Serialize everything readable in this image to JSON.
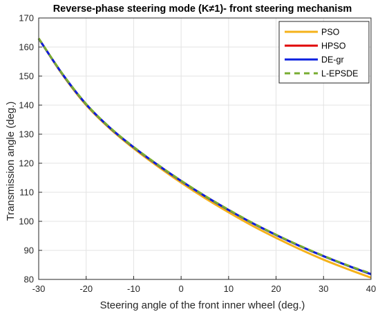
{
  "chart_data": {
    "type": "line",
    "title": "Reverse-phase steering mode (K≠1)- front steering mechanism",
    "xlabel": "Steering angle of the front inner wheel (deg.)",
    "ylabel": "Transmission angle (deg.)",
    "xlim": [
      -30,
      40
    ],
    "ylim": [
      80,
      170
    ],
    "xticks": [
      "-30",
      "-20",
      "-10",
      "0",
      "10",
      "20",
      "30",
      "40"
    ],
    "yticks": [
      "80",
      "90",
      "100",
      "110",
      "120",
      "130",
      "140",
      "150",
      "160",
      "170"
    ],
    "grid": true,
    "legend_position": "top-right",
    "x": [
      -30,
      -25,
      -20,
      -15,
      -10,
      -5,
      0,
      5,
      10,
      15,
      20,
      25,
      30,
      35,
      40
    ],
    "series": [
      {
        "name": "PSO",
        "color": "#F5B21A",
        "style": "solid",
        "values": [
          163.0,
          150.5,
          140.0,
          131.9,
          125.1,
          119.0,
          113.3,
          108.0,
          103.1,
          98.5,
          94.3,
          90.4,
          86.8,
          83.6,
          80.6
        ]
      },
      {
        "name": "HPSO",
        "color": "#E00000",
        "style": "solid",
        "values": [
          162.9,
          150.7,
          140.3,
          132.2,
          125.5,
          119.5,
          113.9,
          108.7,
          103.9,
          99.4,
          95.3,
          91.5,
          88.0,
          84.8,
          81.8
        ]
      },
      {
        "name": "DE-gr",
        "color": "#0A1FE0",
        "style": "solid",
        "values": [
          162.9,
          150.7,
          140.3,
          132.2,
          125.5,
          119.5,
          113.9,
          108.7,
          103.9,
          99.4,
          95.3,
          91.5,
          88.0,
          84.8,
          81.8
        ]
      },
      {
        "name": "L-EPSDE",
        "color": "#77AC30",
        "style": "dashed",
        "values": [
          163.0,
          150.8,
          140.4,
          132.3,
          125.6,
          119.6,
          114.0,
          108.8,
          104.0,
          99.5,
          95.4,
          91.6,
          88.1,
          84.9,
          82.0
        ]
      }
    ]
  }
}
